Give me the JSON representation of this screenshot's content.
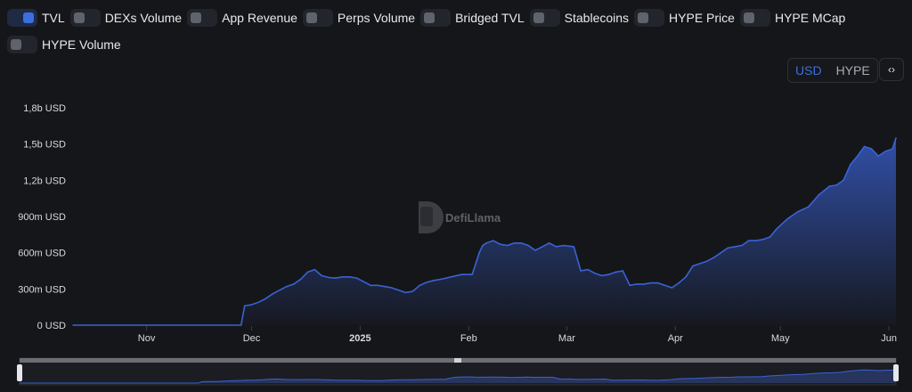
{
  "toggles": [
    {
      "label": "TVL",
      "on": true
    },
    {
      "label": "DEXs Volume",
      "on": false
    },
    {
      "label": "App Revenue",
      "on": false
    },
    {
      "label": "Perps Volume",
      "on": false
    },
    {
      "label": "Bridged TVL",
      "on": false
    },
    {
      "label": "Stablecoins",
      "on": false
    },
    {
      "label": "HYPE Price",
      "on": false
    },
    {
      "label": "HYPE MCap",
      "on": false
    },
    {
      "label": "HYPE Volume",
      "on": false
    }
  ],
  "denomination": {
    "options": [
      "USD",
      "HYPE"
    ],
    "selected": "USD"
  },
  "embed_icon": "code-icon",
  "watermark": "DefiLlama",
  "colors": {
    "accent": "#3b6fe0",
    "line": "#3a62d6",
    "background": "#151619"
  },
  "chart_data": {
    "type": "area",
    "series": [
      {
        "name": "TVL",
        "x": [
          "2024-10-11",
          "2024-11-28",
          "2024-11-29",
          "2024-12-01",
          "2024-12-03",
          "2024-12-05",
          "2024-12-07",
          "2024-12-09",
          "2024-12-11",
          "2024-12-13",
          "2024-12-15",
          "2024-12-17",
          "2024-12-19",
          "2024-12-21",
          "2024-12-23",
          "2024-12-25",
          "2024-12-27",
          "2024-12-29",
          "2024-12-31",
          "2025-01-02",
          "2025-01-04",
          "2025-01-06",
          "2025-01-08",
          "2025-01-10",
          "2025-01-12",
          "2025-01-14",
          "2025-01-16",
          "2025-01-18",
          "2025-01-20",
          "2025-01-22",
          "2025-01-24",
          "2025-01-27",
          "2025-01-30",
          "2025-02-02",
          "2025-02-04",
          "2025-02-05",
          "2025-02-06",
          "2025-02-08",
          "2025-02-10",
          "2025-02-12",
          "2025-02-14",
          "2025-02-16",
          "2025-02-18",
          "2025-02-20",
          "2025-02-22",
          "2025-02-24",
          "2025-02-26",
          "2025-02-28",
          "2025-03-03",
          "2025-03-05",
          "2025-03-07",
          "2025-03-09",
          "2025-03-11",
          "2025-03-13",
          "2025-03-15",
          "2025-03-17",
          "2025-03-19",
          "2025-03-21",
          "2025-03-23",
          "2025-03-25",
          "2025-03-27",
          "2025-03-29",
          "2025-03-31",
          "2025-04-02",
          "2025-04-04",
          "2025-04-06",
          "2025-04-08",
          "2025-04-10",
          "2025-04-12",
          "2025-04-14",
          "2025-04-16",
          "2025-04-18",
          "2025-04-20",
          "2025-04-22",
          "2025-04-24",
          "2025-04-26",
          "2025-04-28",
          "2025-04-30",
          "2025-05-03",
          "2025-05-06",
          "2025-05-09",
          "2025-05-12",
          "2025-05-15",
          "2025-05-17",
          "2025-05-19",
          "2025-05-21",
          "2025-05-23",
          "2025-05-25",
          "2025-05-27",
          "2025-05-29",
          "2025-05-31",
          "2025-06-02",
          "2025-06-03"
        ],
        "values": [
          0,
          0,
          160,
          170,
          190,
          220,
          260,
          290,
          320,
          340,
          380,
          440,
          460,
          410,
          395,
          390,
          400,
          400,
          390,
          360,
          330,
          330,
          320,
          310,
          290,
          270,
          280,
          330,
          355,
          370,
          380,
          400,
          420,
          420,
          600,
          660,
          680,
          700,
          670,
          660,
          680,
          680,
          660,
          620,
          650,
          680,
          650,
          660,
          650,
          450,
          460,
          430,
          410,
          420,
          440,
          450,
          330,
          340,
          340,
          350,
          350,
          330,
          310,
          350,
          400,
          490,
          510,
          530,
          560,
          600,
          640,
          650,
          660,
          700,
          700,
          710,
          730,
          800,
          880,
          940,
          980,
          1080,
          1150,
          1160,
          1200,
          1330,
          1400,
          1480,
          1460,
          1400,
          1440,
          1460,
          1550
        ]
      }
    ],
    "y_ticks": [
      "0 USD",
      "300m USD",
      "600m USD",
      "900m USD",
      "1,2b USD",
      "1,5b USD",
      "1,8b USD"
    ],
    "y_tick_values": [
      0,
      300,
      600,
      900,
      1200,
      1500,
      1800
    ],
    "x_ticks": [
      {
        "label": "Nov",
        "date": "2024-11-01",
        "bold": false
      },
      {
        "label": "Dec",
        "date": "2024-12-01",
        "bold": false
      },
      {
        "label": "2025",
        "date": "2025-01-01",
        "bold": true
      },
      {
        "label": "Feb",
        "date": "2025-02-01",
        "bold": false
      },
      {
        "label": "Mar",
        "date": "2025-03-01",
        "bold": false
      },
      {
        "label": "Apr",
        "date": "2025-04-01",
        "bold": false
      },
      {
        "label": "May",
        "date": "2025-05-01",
        "bold": false
      },
      {
        "label": "Jun",
        "date": "2025-06-01",
        "bold": false
      }
    ],
    "x_range": [
      "2024-10-11",
      "2025-06-03"
    ],
    "ylim": [
      0,
      1800
    ],
    "y_unit": "millions USD",
    "grid": false,
    "has_range_slider": true
  }
}
